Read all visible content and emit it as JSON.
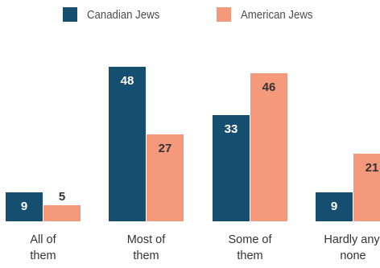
{
  "colors": {
    "canadian": "#154e6e",
    "american": "#f4997b",
    "canadian_label": "#ffffff",
    "american_label": "#333333"
  },
  "chart_data": {
    "type": "bar",
    "categories": [
      [
        "All of",
        "them"
      ],
      [
        "Most of",
        "them"
      ],
      [
        "Some of",
        "them"
      ],
      [
        "Hardly any,",
        "none"
      ]
    ],
    "series": [
      {
        "name": "Canadian Jews",
        "values": [
          9,
          48,
          33,
          9
        ]
      },
      {
        "name": "American Jews",
        "values": [
          5,
          27,
          46,
          21
        ]
      }
    ],
    "ylim": [
      0,
      48
    ],
    "grid": false,
    "legend_position": "top-center"
  }
}
